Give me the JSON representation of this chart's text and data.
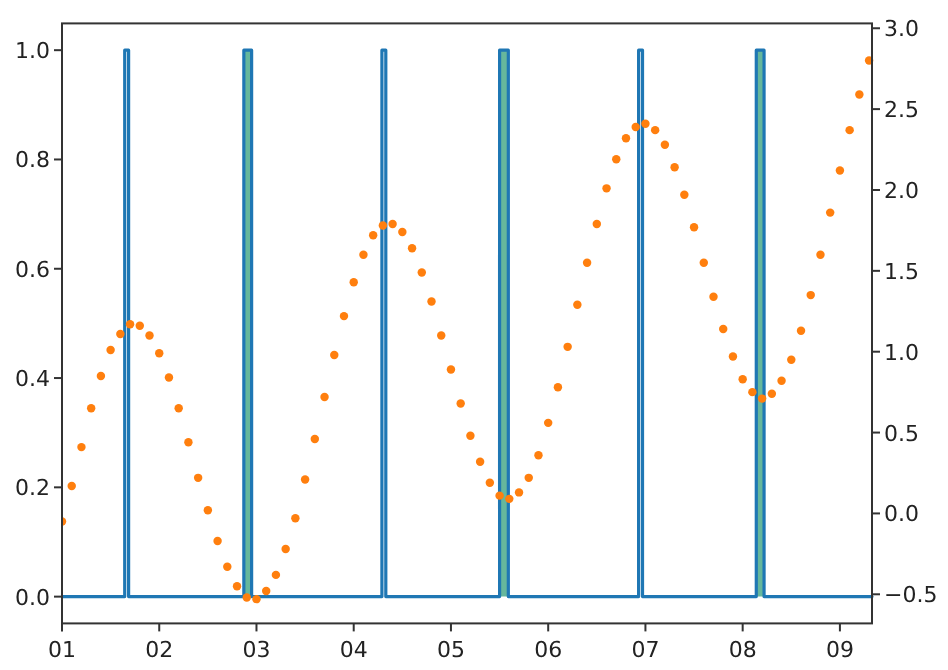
{
  "chart_data": {
    "type": "line",
    "xlim": [
      1,
      9.33
    ],
    "xticks": [
      {
        "value": 1,
        "label": "01"
      },
      {
        "value": 2,
        "label": "02"
      },
      {
        "value": 3,
        "label": "03"
      },
      {
        "value": 4,
        "label": "04"
      },
      {
        "value": 5,
        "label": "05"
      },
      {
        "value": 6,
        "label": "06"
      },
      {
        "value": 7,
        "label": "07"
      },
      {
        "value": 8,
        "label": "08"
      },
      {
        "value": 9,
        "label": "09"
      }
    ],
    "ylim": [
      -0.049,
      1.049
    ],
    "yticks": [
      {
        "value": 0,
        "label": "0.0"
      },
      0.2,
      0.4,
      0.6,
      0.8,
      {
        "value": 1,
        "label": "1.0"
      }
    ],
    "y2lim": [
      -0.68,
      3.03
    ],
    "y2ticks": [
      {
        "value": -0.5,
        "label": "−0.5"
      },
      {
        "value": 0,
        "label": "0.0"
      },
      0.5,
      {
        "value": 1,
        "label": "1.0"
      },
      1.5,
      {
        "value": 2,
        "label": "2.0"
      },
      2.5,
      {
        "value": 3,
        "label": "3.0"
      }
    ],
    "grid": false,
    "series": [
      {
        "type": "area",
        "color": "#66b79c",
        "x": [
          2.87,
          2.87,
          2.95,
          2.95,
          4.0,
          5.5,
          5.5,
          5.59,
          5.59,
          7.0,
          8.14,
          8.14,
          8.22,
          8.22
        ],
        "values": [
          0,
          1,
          1,
          0,
          null,
          0,
          1,
          1,
          0,
          null,
          0,
          1,
          1,
          0
        ]
      },
      {
        "color": "#1f77b4",
        "marker": "none",
        "line_style": "solid",
        "x": [
          1,
          1.645,
          1.645,
          1.685,
          1.685,
          2.87,
          2.87,
          2.95,
          2.95,
          4.29,
          4.29,
          4.33,
          4.33,
          5.5,
          5.5,
          5.59,
          5.59,
          6.93,
          6.93,
          6.97,
          6.97,
          8.14,
          8.14,
          8.22,
          8.22,
          9.33
        ],
        "values": [
          0,
          0,
          1,
          1,
          0,
          0,
          1,
          1,
          0,
          0,
          1,
          1,
          0,
          0,
          1,
          1,
          0,
          0,
          1,
          1,
          0,
          0,
          1,
          1,
          0,
          0
        ]
      },
      {
        "type": "scatter",
        "color": "#ff7f0e",
        "marker": "circle",
        "axis": "y2",
        "x": [
          1.0,
          1.1,
          1.2,
          1.3,
          1.4,
          1.5,
          1.6,
          1.7,
          1.8,
          1.9,
          2.0,
          2.1,
          2.2,
          2.3,
          2.4,
          2.5,
          2.6,
          2.7,
          2.8,
          2.9,
          3.0,
          3.1,
          3.2,
          3.3,
          3.4,
          3.5,
          3.6,
          3.7,
          3.8,
          3.9,
          4.0,
          4.1,
          4.2,
          4.3,
          4.4,
          4.5,
          4.6,
          4.7,
          4.8,
          4.9,
          5.0,
          5.1,
          5.2,
          5.3,
          5.4,
          5.5,
          5.6,
          5.7,
          5.8,
          5.9,
          6.0,
          6.1,
          6.2,
          6.3,
          6.4,
          6.5,
          6.6,
          6.7,
          6.8,
          6.9,
          7.0,
          7.1,
          7.2,
          7.3,
          7.4,
          7.5,
          7.6,
          7.7,
          7.8,
          7.9,
          8.0,
          8.1,
          8.2,
          8.3,
          8.4,
          8.5,
          8.6,
          8.7,
          8.8,
          8.9,
          9.0,
          9.1,
          9.2,
          9.3
        ],
        "values": [
          -0.05,
          0.17,
          0.41,
          0.65,
          0.85,
          1.01,
          1.11,
          1.17,
          1.16,
          1.1,
          0.99,
          0.84,
          0.65,
          0.44,
          0.22,
          0.02,
          -0.17,
          -0.33,
          -0.45,
          -0.52,
          -0.53,
          -0.48,
          -0.38,
          -0.22,
          -0.03,
          0.21,
          0.46,
          0.72,
          0.98,
          1.22,
          1.43,
          1.6,
          1.72,
          1.78,
          1.79,
          1.74,
          1.64,
          1.49,
          1.31,
          1.1,
          0.89,
          0.68,
          0.48,
          0.32,
          0.19,
          0.11,
          0.09,
          0.13,
          0.22,
          0.36,
          0.56,
          0.78,
          1.03,
          1.29,
          1.55,
          1.79,
          2.01,
          2.19,
          2.32,
          2.39,
          2.41,
          2.37,
          2.28,
          2.14,
          1.97,
          1.77,
          1.55,
          1.34,
          1.14,
          0.97,
          0.83,
          0.75,
          0.71,
          0.74,
          0.82,
          0.95,
          1.13,
          1.35,
          1.6,
          1.86,
          2.12,
          2.37,
          2.59,
          2.8
        ]
      }
    ]
  }
}
